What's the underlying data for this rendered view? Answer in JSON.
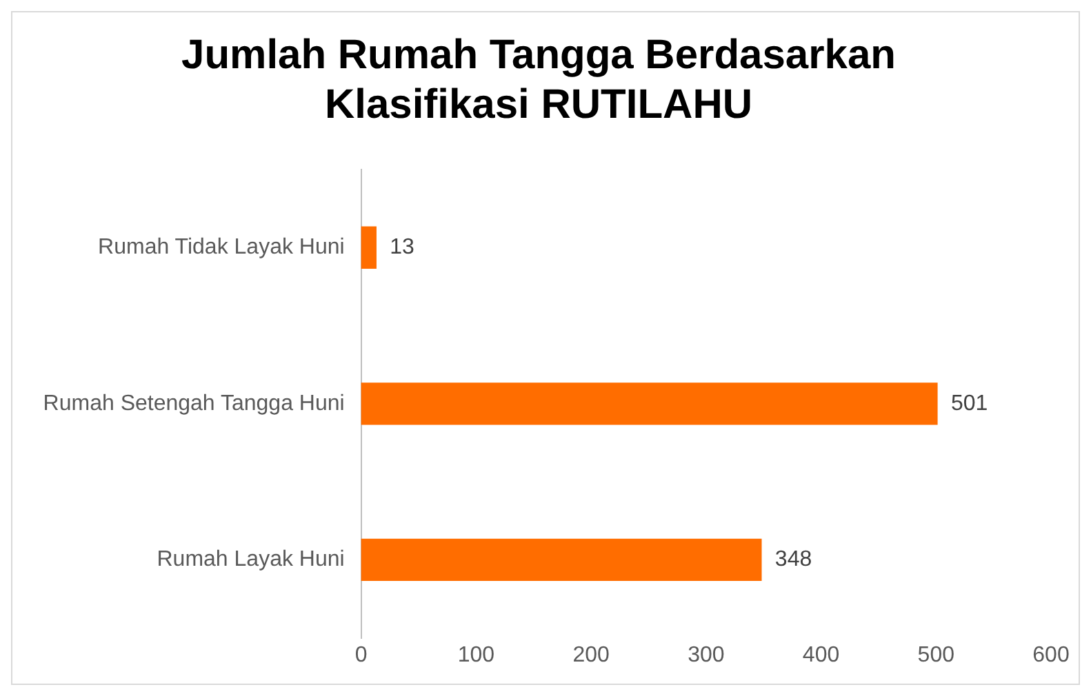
{
  "chart_data": {
    "type": "bar",
    "title": "Jumlah Rumah Tangga Berdasarkan Klasifikasi RUTILAHU",
    "orientation": "horizontal",
    "categories": [
      "Rumah Tidak Layak Huni",
      "Rumah Setengah Tangga Huni",
      "Rumah Layak Huni"
    ],
    "series": [
      {
        "color": "#ff6d00",
        "values": [
          13,
          501,
          348
        ]
      }
    ],
    "xlim": [
      0,
      600
    ],
    "xticks": [
      0,
      100,
      200,
      300,
      400,
      500,
      600
    ],
    "grid": false,
    "legend": false,
    "data_labels": true
  }
}
